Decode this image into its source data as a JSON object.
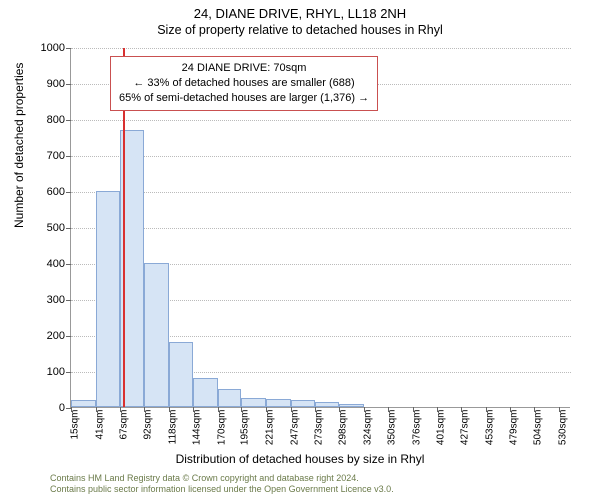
{
  "title": "24, DIANE DRIVE, RHYL, LL18 2NH",
  "subtitle": "Size of property relative to detached houses in Rhyl",
  "y_axis_label": "Number of detached properties",
  "x_axis_label": "Distribution of detached houses by size in Rhyl",
  "chart": {
    "type": "histogram",
    "background_color": "#ffffff",
    "bar_fill": "#d6e4f5",
    "bar_stroke": "#8aa9d6",
    "grid_color": "#bbbbbb",
    "axis_color": "#999999",
    "ref_line_color": "#d93030",
    "ref_line_x_sqm": 70,
    "xlim": [
      15,
      543
    ],
    "ylim": [
      0,
      1000
    ],
    "ytick_step": 100,
    "yticks": [
      0,
      100,
      200,
      300,
      400,
      500,
      600,
      700,
      800,
      900,
      1000
    ],
    "xticks": [
      15,
      41,
      67,
      92,
      118,
      144,
      170,
      195,
      221,
      247,
      273,
      298,
      324,
      350,
      376,
      401,
      427,
      453,
      479,
      504,
      530
    ],
    "xtick_unit": "sqm",
    "bars": [
      {
        "x0": 15,
        "x1": 41,
        "value": 20
      },
      {
        "x0": 41,
        "x1": 67,
        "value": 600
      },
      {
        "x0": 67,
        "x1": 92,
        "value": 770
      },
      {
        "x0": 92,
        "x1": 118,
        "value": 400
      },
      {
        "x0": 118,
        "x1": 144,
        "value": 180
      },
      {
        "x0": 144,
        "x1": 170,
        "value": 80
      },
      {
        "x0": 170,
        "x1": 195,
        "value": 50
      },
      {
        "x0": 195,
        "x1": 221,
        "value": 25
      },
      {
        "x0": 221,
        "x1": 247,
        "value": 22
      },
      {
        "x0": 247,
        "x1": 273,
        "value": 20
      },
      {
        "x0": 273,
        "x1": 298,
        "value": 15
      },
      {
        "x0": 298,
        "x1": 324,
        "value": 8
      }
    ]
  },
  "annotation": {
    "line1": "24 DIANE DRIVE: 70sqm",
    "line2": "← 33% of detached houses are smaller (688)",
    "line3": "65% of semi-detached houses are larger (1,376) →",
    "border_color": "#c95050"
  },
  "footer": {
    "line1": "Contains HM Land Registry data © Crown copyright and database right 2024.",
    "line2": "Contains public sector information licensed under the Open Government Licence v3.0."
  }
}
